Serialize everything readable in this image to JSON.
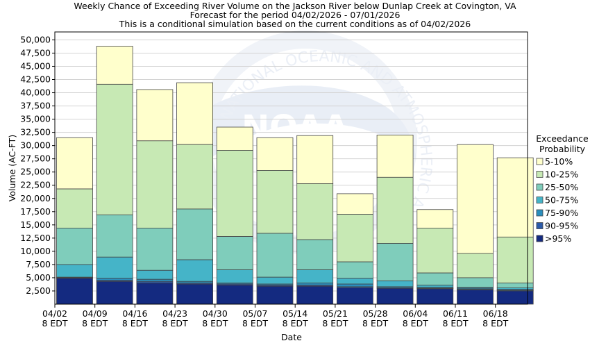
{
  "title_lines": [
    "Weekly Chance of Exceeding River Volume on the Jackson River below Dunlap Creek at Covington, VA",
    "Forecast for the period 04/02/2026 - 07/01/2026",
    "This is a conditional simulation based on the current conditions as of 04/02/2026"
  ],
  "watermark_text": "NATIONAL OCEANIC AND ATMOSPHERIC ADMINISTRATION",
  "watermark_logo": "NOAA",
  "colors": {
    "gt95": "#142a80",
    "p90_95": "#2c5aa8",
    "p75_90": "#2a8ebd",
    "p50_75": "#45b4c8",
    "p25_50": "#7fcdbb",
    "p10_25": "#c7e9b4",
    "p5_10": "#ffffcc"
  },
  "chart_data": {
    "type": "bar",
    "stacked": true,
    "xlabel": "Date",
    "ylabel": "Volume (AC-FT)",
    "ylim": [
      0,
      51500
    ],
    "yticks": [
      2500,
      5000,
      7500,
      10000,
      12500,
      15000,
      17500,
      20000,
      22500,
      25000,
      27500,
      30000,
      32500,
      35000,
      37500,
      40000,
      42500,
      45000,
      47500,
      50000
    ],
    "ytick_labels": [
      "2,500",
      "5,000",
      "7,500",
      "10,000",
      "12,500",
      "15,000",
      "17,500",
      "20,000",
      "22,500",
      "25,000",
      "27,500",
      "30,000",
      "32,500",
      "35,000",
      "37,500",
      "40,000",
      "42,500",
      "45,000",
      "47,500",
      "50,000"
    ],
    "xticks": [
      {
        "line1": "04/02",
        "line2": "8 EDT"
      },
      {
        "line1": "04/09",
        "line2": "8 EDT"
      },
      {
        "line1": "04/16",
        "line2": "8 EDT"
      },
      {
        "line1": "04/23",
        "line2": "8 EDT"
      },
      {
        "line1": "04/30",
        "line2": "8 EDT"
      },
      {
        "line1": "05/07",
        "line2": "8 EDT"
      },
      {
        "line1": "05/14",
        "line2": "8 EDT"
      },
      {
        "line1": "05/21",
        "line2": "8 EDT"
      },
      {
        "line1": "05/28",
        "line2": "8 EDT"
      },
      {
        "line1": "06/04",
        "line2": "8 EDT"
      },
      {
        "line1": "06/11",
        "line2": "8 EDT"
      },
      {
        "line1": "06/18",
        "line2": "8 EDT"
      }
    ],
    "legend_title": [
      "Exceedance",
      "Probability"
    ],
    "legend_position": "right",
    "series": [
      {
        "name": "5-10%",
        "color_key": "p5_10",
        "tops": [
          31500,
          48800,
          40600,
          41900,
          33500,
          31500,
          31900,
          20900,
          32000,
          17900,
          30200,
          27700
        ]
      },
      {
        "name": "10-25%",
        "color_key": "p10_25",
        "tops": [
          21800,
          41600,
          30900,
          30200,
          29100,
          25300,
          22800,
          17000,
          24000,
          14400,
          9600,
          12700
        ]
      },
      {
        "name": "25-50%",
        "color_key": "p25_50",
        "tops": [
          14400,
          16900,
          14400,
          18000,
          12800,
          13400,
          12200,
          8000,
          11500,
          5900,
          5000,
          4000
        ]
      },
      {
        "name": "50-75%",
        "color_key": "p50_75",
        "tops": [
          7500,
          8900,
          6400,
          8400,
          6500,
          5100,
          6500,
          4900,
          4400,
          3600,
          3200,
          3100
        ]
      },
      {
        "name": "75-90%",
        "color_key": "p75_90",
        "tops": [
          5100,
          4900,
          4700,
          4300,
          4000,
          3800,
          4000,
          3800,
          3300,
          3200,
          3000,
          2800
        ]
      },
      {
        "name": "90-95%",
        "color_key": "p90_95",
        "tops": [
          5000,
          4500,
          4300,
          4000,
          3800,
          3600,
          3600,
          3300,
          3100,
          3000,
          2800,
          2600
        ]
      },
      {
        "name": ">95%",
        "color_key": "gt95",
        "tops": [
          4900,
          4300,
          4000,
          3800,
          3600,
          3400,
          3400,
          3100,
          3000,
          2900,
          2700,
          2500
        ]
      }
    ]
  }
}
